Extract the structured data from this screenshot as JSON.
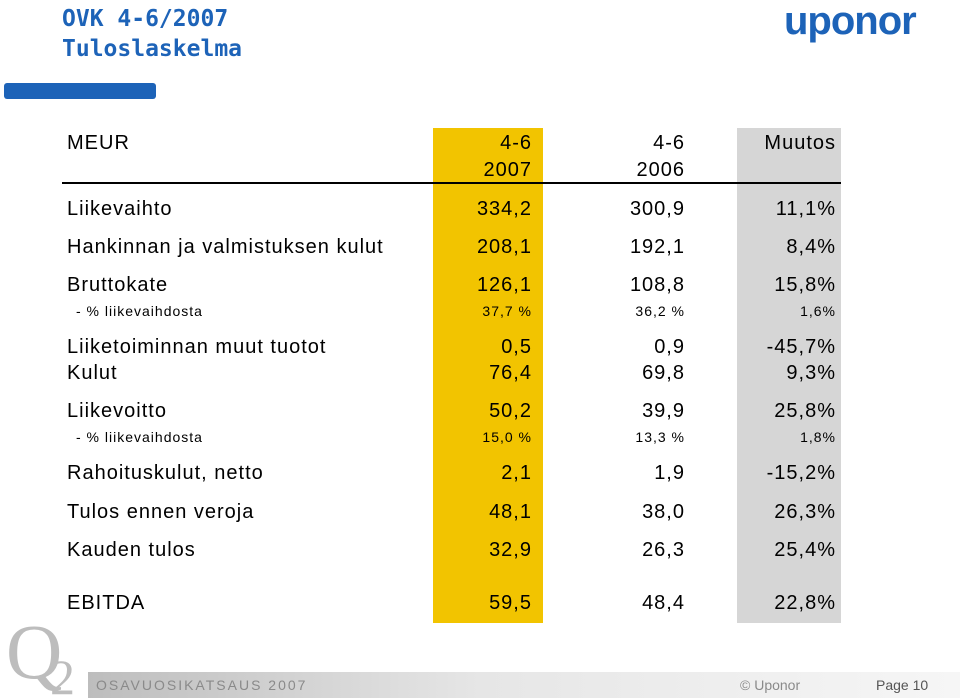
{
  "title": {
    "line1": "OVK 4-6/2007",
    "line2": "Tuloslaskelma"
  },
  "brand": {
    "logo_text": "uponor",
    "accent_color": "#1d63b8",
    "highlight_2007_color": "#f2c400",
    "highlight_change_color": "#d6d6d6"
  },
  "table": {
    "header": {
      "label": "MEUR",
      "col1_line1": "4-6",
      "col1_line2": "2007",
      "col2_line1": "4-6",
      "col2_line2": "2006",
      "col3": "Muutos"
    },
    "rows": [
      {
        "label": "Liikevaihto",
        "v1": "334,2",
        "v2": "300,9",
        "v3": "11,1%"
      },
      {
        "label": "Hankinnan ja valmistuksen kulut",
        "v1": "208,1",
        "v2": "192,1",
        "v3": "8,4%"
      },
      {
        "label": "Bruttokate",
        "v1": "126,1",
        "v2": "108,8",
        "v3": "15,8%"
      },
      {
        "label": "- % liikevaihdosta",
        "v1": "37,7 %",
        "v2": "36,2 %",
        "v3": "1,6%"
      },
      {
        "label": "Liiketoiminnan muut tuotot",
        "v1": "0,5",
        "v2": "0,9",
        "v3": "-45,7%"
      },
      {
        "label": "Kulut",
        "v1": "76,4",
        "v2": "69,8",
        "v3": "9,3%"
      },
      {
        "label": "Liikevoitto",
        "v1": "50,2",
        "v2": "39,9",
        "v3": "25,8%"
      },
      {
        "label": "- % liikevaihdosta",
        "v1": "15,0 %",
        "v2": "13,3 %",
        "v3": "1,8%"
      },
      {
        "label": "Rahoituskulut, netto",
        "v1": "2,1",
        "v2": "1,9",
        "v3": "-15,2%"
      },
      {
        "label": "Tulos ennen veroja",
        "v1": "48,1",
        "v2": "38,0",
        "v3": "26,3%"
      },
      {
        "label": "Kauden tulos",
        "v1": "32,9",
        "v2": "26,3",
        "v3": "25,4%"
      },
      {
        "label": "EBITDA",
        "v1": "59,5",
        "v2": "48,4",
        "v3": "22,8%"
      }
    ]
  },
  "footer": {
    "report": "OSAVUOSIKATSAUS 2007",
    "copyright": "© Uponor",
    "page": "Page 10",
    "q2_logo": "Q2"
  }
}
